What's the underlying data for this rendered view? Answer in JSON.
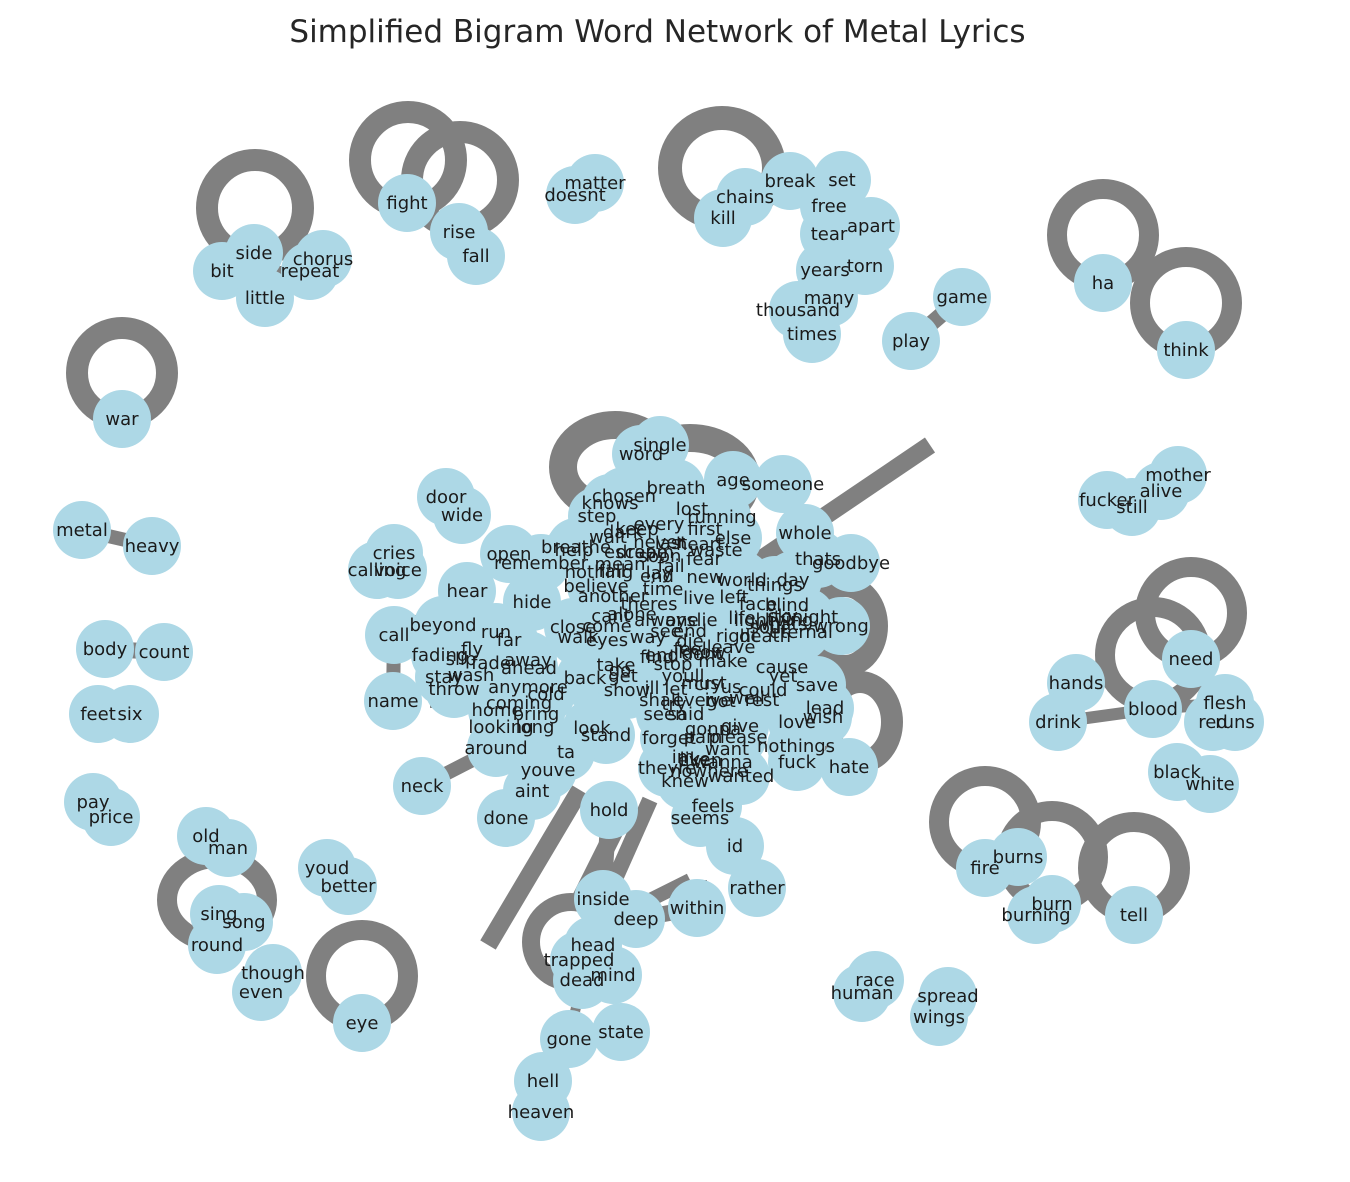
{
  "title": "Simplified Bigram Word Network of Metal Lyrics",
  "colors": {
    "node": "#add8e6",
    "edge": "#808080",
    "text": "#1a1a1a"
  },
  "words": {
    "matter": "matter",
    "doesnt": "doesnt",
    "fight": "fight",
    "rise": "rise",
    "fall": "fall",
    "side": "side",
    "chorus": "chorus",
    "bit": "bit",
    "repeat": "repeat",
    "little": "little",
    "war": "war",
    "metal": "metal",
    "heavy": "heavy",
    "body": "body",
    "count": "count",
    "feet": "feet",
    "six": "six",
    "pay": "pay",
    "price": "price",
    "old": "old",
    "man": "man",
    "sing": "sing",
    "song": "song",
    "round": "round",
    "youd": "youd",
    "better": "better",
    "though": "though",
    "even": "even",
    "eye": "eye",
    "break": "break",
    "set": "set",
    "chains": "chains",
    "kill": "kill",
    "free": "free",
    "tear": "tear",
    "apart": "apart",
    "years": "years",
    "torn": "torn",
    "many": "many",
    "thousand": "thousand",
    "times": "times",
    "game": "game",
    "play": "play",
    "ha": "ha",
    "think": "think",
    "mother": "mother",
    "alive": "alive",
    "fucker": "fucker",
    "still": "still",
    "need": "need",
    "hands": "hands",
    "drink": "drink",
    "blood": "blood",
    "flesh": "flesh",
    "red": "red",
    "runs": "runs",
    "black": "black",
    "white": "white",
    "burns": "burns",
    "fire": "fire",
    "burn": "burn",
    "burning": "burning",
    "tell": "tell",
    "race": "race",
    "human": "human",
    "spread": "spread",
    "wings": "wings",
    "single": "single",
    "word": "word",
    "age": "age",
    "someone": "someone",
    "breath": "breath",
    "chosen": "chosen",
    "knows": "knows",
    "lost": "lost",
    "step": "step",
    "running": "running",
    "every": "every",
    "first": "first",
    "whole": "whole",
    "thats": "thats",
    "goodbye": "goodbye",
    "door": "door",
    "wide": "wide",
    "cries": "cries",
    "calling": "calling",
    "voice": "voice",
    "open": "open",
    "remember": "remember",
    "hear": "hear",
    "hide": "hide",
    "call": "call",
    "beyond": "beyond",
    "run": "run",
    "far": "far",
    "close": "close",
    "come": "come",
    "walk": "walk",
    "eyes": "eyes",
    "way": "way",
    "right": "right",
    "death": "death",
    "eternal": "eternal",
    "wrong": "wrong",
    "fading": "fading",
    "fly": "fly",
    "fade": "fade",
    "away": "away",
    "slip": "slip",
    "stay": "stay",
    "wash": "wash",
    "throw": "throw",
    "name": "name",
    "take": "take",
    "find": "find",
    "make": "make",
    "cause": "cause",
    "lead": "lead",
    "save": "save",
    "anymore": "anymore",
    "cold": "cold",
    "back": "back",
    "show": "show",
    "let": "let",
    "us": "us",
    "could": "could",
    "home": "home",
    "looking": "looking",
    "long": "long",
    "look": "look",
    "stand": "stand",
    "around": "around",
    "ta": "ta",
    "love": "love",
    "wish": "wish",
    "give": "give",
    "forget": "forget",
    "please": "please",
    "pain": "pain",
    "nothings": "nothings",
    "neck": "neck",
    "youve": "youve",
    "aint": "aint",
    "done": "done",
    "hold": "hold",
    "feels": "feels",
    "seems": "seems",
    "knew": "knew",
    "wanted": "wanted",
    "fuck": "fuck",
    "hate": "hate",
    "id": "id",
    "rather": "rather",
    "inside": "inside",
    "deep": "deep",
    "within": "within",
    "head": "head",
    "trapped": "trapped",
    "mind": "mind",
    "dead": "dead",
    "gone": "gone",
    "state": "state",
    "hell": "hell",
    "heaven": "heaven",
    "escape": "escape",
    "waste": "waste",
    "live": "live",
    "left": "left",
    "face": "face",
    "blind": "blind",
    "nothing": "nothing",
    "believe": "believe",
    "another": "another",
    "theres": "theres",
    "cant": "cant",
    "leave": "leave",
    "stop": "stop",
    "youll": "youll",
    "seen": "seen",
    "ill": "ill",
    "else": "else",
    "heart": "heart",
    "world": "world",
    "things": "things",
    "day": "day",
    "end": "end",
    "feel": "feel",
    "lie": "lie",
    "never": "never",
    "last": "last",
    "time": "time",
    "dream": "dream",
    "new": "new",
    "life": "life",
    "keep": "keep",
    "dont": "dont",
    "know": "know",
    "go": "go",
    "get": "get",
    "one": "one",
    "see": "see",
    "light": "light",
    "fear": "fear",
    "like": "like",
    "well": "well",
    "theyre": "theyre",
    "ive": "ive",
    "got": "got",
    "ever": "ever",
    "said": "said",
    "even2": "even",
    "want": "want",
    "help": "help",
    "sky": "sky",
    "living": "living",
    "soul": "soul",
    "whats": "whats",
    "tonight": "tonight",
    "fall2": "fall",
    "breathe": "breathe",
    "mean": "mean",
    "end2": "end",
    "wait": "wait",
    "fail": "fail",
    "soon": "soon",
    "alone": "alone",
    "lay": "lay",
    "dark": "dark",
    "ahead": "ahead",
    "nowhere": "nowhere",
    "im": "im",
    "gonna": "gonna",
    "wanna": "wanna",
    "bring": "bring",
    "coming": "coming",
    "die": "die",
    "end3": "end",
    "shall": "shall",
    "cry": "cry",
    "try": "try",
    "rest": "rest",
    "yet": "yet",
    "always": "always",
    "must": "must"
  }
}
